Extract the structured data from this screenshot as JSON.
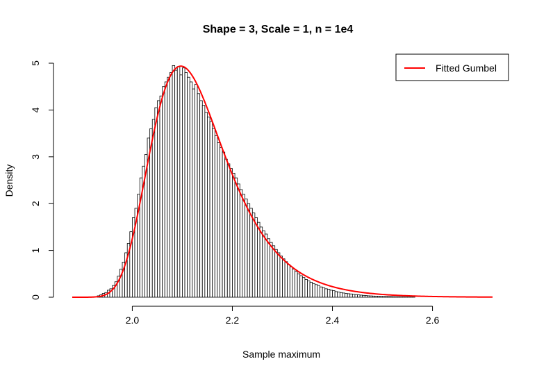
{
  "chart_data": {
    "type": "bar",
    "title": "Shape = 3, Scale = 1, n = 1e4",
    "xlabel": "Sample maximum",
    "ylabel": "Density",
    "xlim": [
      1.88,
      2.72
    ],
    "ylim": [
      0,
      5
    ],
    "x_ticks": [
      "2.0",
      "2.2",
      "2.4",
      "2.6"
    ],
    "y_ticks": [
      "0",
      "1",
      "2",
      "3",
      "4",
      "5"
    ],
    "grid": false,
    "legend_position": "top-right",
    "histogram": {
      "bin_width": 0.005,
      "x_start": 1.93,
      "densities": [
        0.03,
        0.05,
        0.08,
        0.1,
        0.15,
        0.18,
        0.25,
        0.33,
        0.45,
        0.6,
        0.75,
        0.95,
        1.15,
        1.4,
        1.7,
        1.9,
        2.2,
        2.55,
        2.8,
        3.05,
        3.4,
        3.6,
        3.8,
        4.05,
        4.2,
        4.3,
        4.5,
        4.6,
        4.7,
        4.8,
        4.95,
        4.85,
        4.93,
        4.75,
        4.9,
        4.8,
        4.7,
        4.6,
        4.45,
        4.55,
        4.35,
        4.2,
        4.1,
        3.95,
        3.85,
        3.75,
        3.6,
        3.45,
        3.3,
        3.2,
        3.1,
        2.95,
        2.85,
        2.75,
        2.65,
        2.55,
        2.42,
        2.3,
        2.2,
        2.1,
        2.0,
        1.9,
        1.8,
        1.7,
        1.6,
        1.5,
        1.42,
        1.35,
        1.25,
        1.17,
        1.1,
        1.02,
        0.95,
        0.88,
        0.82,
        0.76,
        0.7,
        0.65,
        0.6,
        0.55,
        0.5,
        0.46,
        0.42,
        0.38,
        0.35,
        0.32,
        0.29,
        0.27,
        0.25,
        0.22,
        0.2,
        0.18,
        0.17,
        0.15,
        0.14,
        0.12,
        0.11,
        0.1,
        0.09,
        0.08,
        0.075,
        0.07,
        0.06,
        0.055,
        0.05,
        0.045,
        0.04,
        0.035,
        0.03,
        0.028,
        0.025,
        0.022,
        0.02,
        0.018,
        0.016,
        0.015,
        0.013,
        0.012,
        0.01,
        0.009,
        0.008,
        0.007,
        0.006,
        0.005,
        0.004,
        0.004,
        0.003
      ]
    },
    "series": [
      {
        "name": "Fitted Gumbel",
        "color": "#ff0000",
        "type": "line",
        "gumbel": {
          "mu": 2.097,
          "beta": 0.0745,
          "x_range": [
            1.88,
            2.72
          ]
        }
      }
    ]
  }
}
